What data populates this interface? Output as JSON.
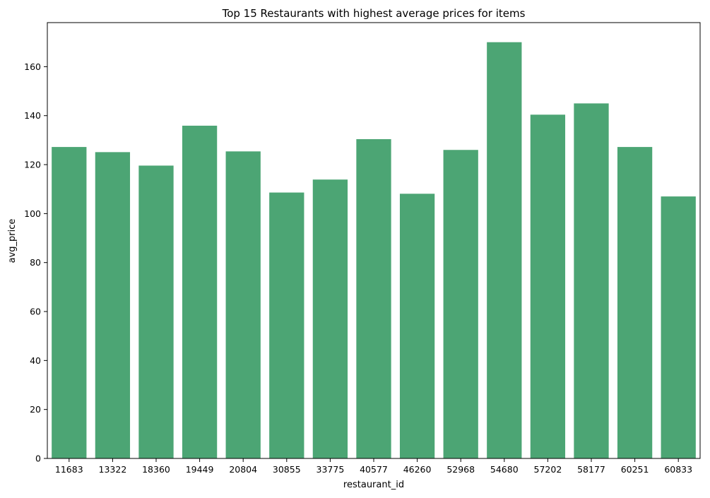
{
  "chart_data": {
    "type": "bar",
    "title": "Top 15 Restaurants with highest average prices for items",
    "xlabel": "restaurant_id",
    "ylabel": "avg_price",
    "categories": [
      "11683",
      "13322",
      "18360",
      "19449",
      "20804",
      "30855",
      "33775",
      "40577",
      "46260",
      "52968",
      "54680",
      "57202",
      "58177",
      "60251",
      "60833"
    ],
    "values": [
      127.2,
      125.1,
      119.6,
      135.9,
      125.4,
      108.6,
      113.9,
      130.4,
      108.1,
      126.0,
      170.0,
      140.4,
      145.0,
      127.2,
      107.0
    ],
    "ylim": [
      0,
      178
    ],
    "yticks": [
      0,
      20,
      40,
      60,
      80,
      100,
      120,
      140,
      160
    ],
    "grid": false,
    "bar_color": "#4ca574"
  }
}
